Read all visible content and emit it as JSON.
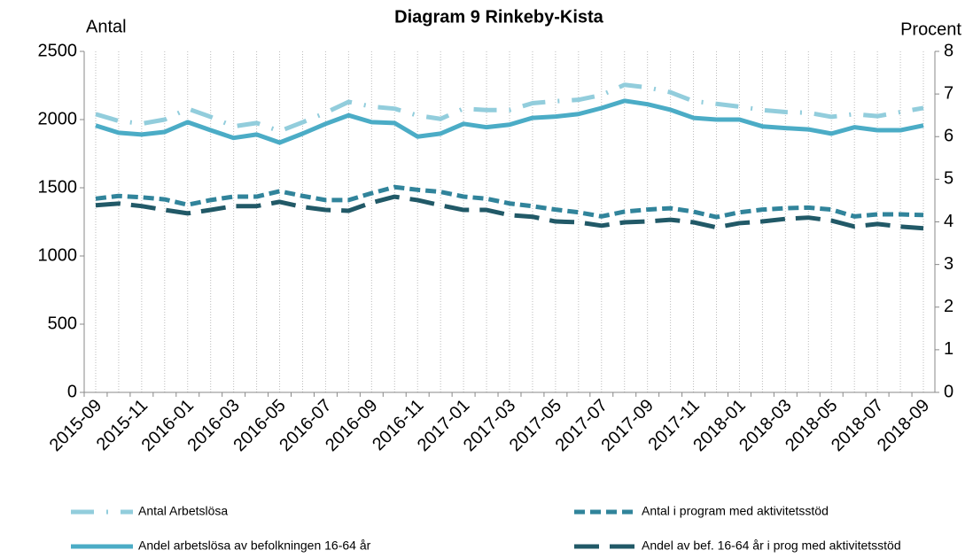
{
  "chart_data": {
    "type": "line",
    "title": "Diagram 9 Rinkeby-Kista",
    "y_label": "Antal",
    "y2_label": "Procent",
    "categories": [
      "2015-09",
      null,
      "2015-11",
      null,
      "2016-01",
      null,
      "2016-03",
      null,
      "2016-05",
      null,
      "2016-07",
      null,
      "2016-09",
      null,
      "2016-11",
      null,
      "2017-01",
      null,
      "2017-03",
      null,
      "2017-05",
      null,
      "2017-07",
      null,
      "2017-09",
      null,
      "2017-11",
      null,
      "2018-01",
      null,
      "2018-03",
      null,
      "2018-05",
      null,
      "2018-07",
      null,
      "2018-09"
    ],
    "ylim": [
      0,
      2500
    ],
    "yticks": [
      0,
      500,
      1000,
      1500,
      2000,
      2500
    ],
    "y2lim": [
      0,
      8
    ],
    "y2ticks": [
      0,
      1,
      2,
      3,
      4,
      5,
      6,
      7,
      8
    ],
    "series": [
      {
        "name": "Antal Arbetslösa",
        "color": "#92cddc",
        "line_style": "dash-dot",
        "values": [
          2040,
          1990,
          1970,
          2000,
          2080,
          2020,
          1950,
          1975,
          1915,
          1980,
          2050,
          2130,
          2095,
          2080,
          2030,
          2005,
          2080,
          2070,
          2070,
          2120,
          2135,
          2145,
          2180,
          2255,
          2235,
          2200,
          2135,
          2115,
          2095,
          2070,
          2055,
          2050,
          2020,
          2040,
          2025,
          2055,
          2085
        ]
      },
      {
        "name": "Antal i program med aktivitetsstöd",
        "color": "#31849b",
        "line_style": "dash",
        "values": [
          1420,
          1440,
          1430,
          1415,
          1375,
          1410,
          1435,
          1435,
          1475,
          1440,
          1410,
          1410,
          1460,
          1505,
          1485,
          1470,
          1435,
          1420,
          1385,
          1365,
          1340,
          1320,
          1290,
          1325,
          1340,
          1350,
          1325,
          1285,
          1320,
          1340,
          1350,
          1355,
          1340,
          1290,
          1305,
          1305,
          1300
        ]
      },
      {
        "name": "Andel arbetslösa av befolkningen 16-64 år",
        "color": "#4bacc6",
        "line_style": "solid",
        "axis": "y2",
        "values": [
          6.26,
          6.09,
          6.05,
          6.11,
          6.34,
          6.15,
          5.97,
          6.05,
          5.86,
          6.07,
          6.3,
          6.5,
          6.34,
          6.32,
          6.0,
          6.07,
          6.3,
          6.22,
          6.28,
          6.44,
          6.47,
          6.53,
          6.67,
          6.84,
          6.76,
          6.63,
          6.44,
          6.4,
          6.4,
          6.24,
          6.2,
          6.17,
          6.07,
          6.22,
          6.15,
          6.15,
          6.26
        ]
      },
      {
        "name": "Andel av bef. 16-64 år i prog med aktivitetsstöd",
        "color": "#215967",
        "line_style": "long-dash",
        "axis": "y2",
        "values": [
          4.39,
          4.43,
          4.37,
          4.28,
          4.2,
          4.28,
          4.37,
          4.37,
          4.47,
          4.35,
          4.28,
          4.26,
          4.45,
          4.59,
          4.51,
          4.39,
          4.28,
          4.28,
          4.16,
          4.12,
          4.01,
          3.99,
          3.91,
          3.99,
          4.01,
          4.05,
          3.99,
          3.87,
          3.97,
          4.01,
          4.07,
          4.1,
          4.03,
          3.89,
          3.95,
          3.89,
          3.85
        ]
      }
    ]
  }
}
